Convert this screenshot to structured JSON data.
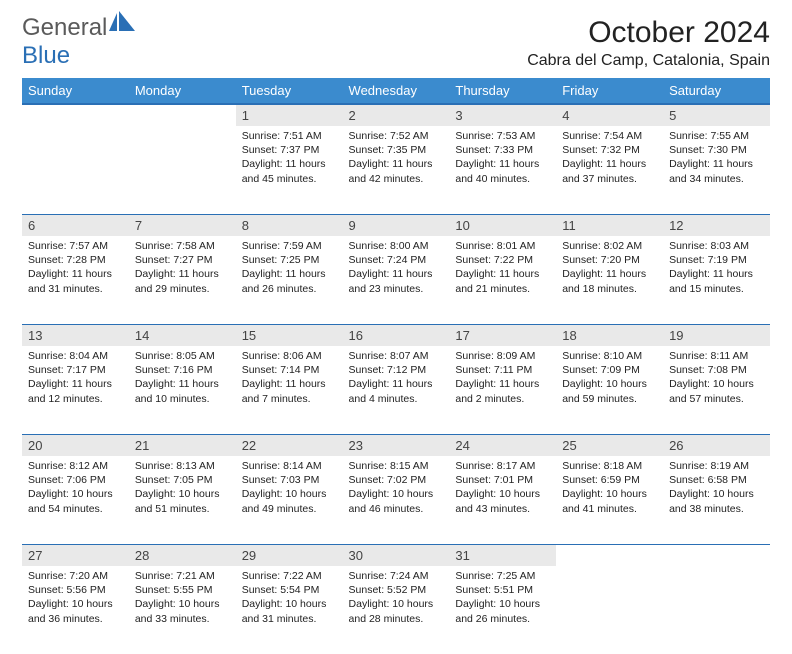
{
  "logo": {
    "text1": "General",
    "text2": "Blue"
  },
  "title": "October 2024",
  "location": "Cabra del Camp, Catalonia, Spain",
  "colors": {
    "header_bg": "#3b8bce",
    "header_border": "#2a6fb5",
    "daynum_bg": "#e9e9e9",
    "text": "#222222",
    "logo_gray": "#5a5a5a",
    "logo_blue": "#2a6fb5"
  },
  "day_headers": [
    "Sunday",
    "Monday",
    "Tuesday",
    "Wednesday",
    "Thursday",
    "Friday",
    "Saturday"
  ],
  "weeks": [
    [
      null,
      null,
      {
        "n": "1",
        "sr": "7:51 AM",
        "ss": "7:37 PM",
        "dl": "11 hours and 45 minutes."
      },
      {
        "n": "2",
        "sr": "7:52 AM",
        "ss": "7:35 PM",
        "dl": "11 hours and 42 minutes."
      },
      {
        "n": "3",
        "sr": "7:53 AM",
        "ss": "7:33 PM",
        "dl": "11 hours and 40 minutes."
      },
      {
        "n": "4",
        "sr": "7:54 AM",
        "ss": "7:32 PM",
        "dl": "11 hours and 37 minutes."
      },
      {
        "n": "5",
        "sr": "7:55 AM",
        "ss": "7:30 PM",
        "dl": "11 hours and 34 minutes."
      }
    ],
    [
      {
        "n": "6",
        "sr": "7:57 AM",
        "ss": "7:28 PM",
        "dl": "11 hours and 31 minutes."
      },
      {
        "n": "7",
        "sr": "7:58 AM",
        "ss": "7:27 PM",
        "dl": "11 hours and 29 minutes."
      },
      {
        "n": "8",
        "sr": "7:59 AM",
        "ss": "7:25 PM",
        "dl": "11 hours and 26 minutes."
      },
      {
        "n": "9",
        "sr": "8:00 AM",
        "ss": "7:24 PM",
        "dl": "11 hours and 23 minutes."
      },
      {
        "n": "10",
        "sr": "8:01 AM",
        "ss": "7:22 PM",
        "dl": "11 hours and 21 minutes."
      },
      {
        "n": "11",
        "sr": "8:02 AM",
        "ss": "7:20 PM",
        "dl": "11 hours and 18 minutes."
      },
      {
        "n": "12",
        "sr": "8:03 AM",
        "ss": "7:19 PM",
        "dl": "11 hours and 15 minutes."
      }
    ],
    [
      {
        "n": "13",
        "sr": "8:04 AM",
        "ss": "7:17 PM",
        "dl": "11 hours and 12 minutes."
      },
      {
        "n": "14",
        "sr": "8:05 AM",
        "ss": "7:16 PM",
        "dl": "11 hours and 10 minutes."
      },
      {
        "n": "15",
        "sr": "8:06 AM",
        "ss": "7:14 PM",
        "dl": "11 hours and 7 minutes."
      },
      {
        "n": "16",
        "sr": "8:07 AM",
        "ss": "7:12 PM",
        "dl": "11 hours and 4 minutes."
      },
      {
        "n": "17",
        "sr": "8:09 AM",
        "ss": "7:11 PM",
        "dl": "11 hours and 2 minutes."
      },
      {
        "n": "18",
        "sr": "8:10 AM",
        "ss": "7:09 PM",
        "dl": "10 hours and 59 minutes."
      },
      {
        "n": "19",
        "sr": "8:11 AM",
        "ss": "7:08 PM",
        "dl": "10 hours and 57 minutes."
      }
    ],
    [
      {
        "n": "20",
        "sr": "8:12 AM",
        "ss": "7:06 PM",
        "dl": "10 hours and 54 minutes."
      },
      {
        "n": "21",
        "sr": "8:13 AM",
        "ss": "7:05 PM",
        "dl": "10 hours and 51 minutes."
      },
      {
        "n": "22",
        "sr": "8:14 AM",
        "ss": "7:03 PM",
        "dl": "10 hours and 49 minutes."
      },
      {
        "n": "23",
        "sr": "8:15 AM",
        "ss": "7:02 PM",
        "dl": "10 hours and 46 minutes."
      },
      {
        "n": "24",
        "sr": "8:17 AM",
        "ss": "7:01 PM",
        "dl": "10 hours and 43 minutes."
      },
      {
        "n": "25",
        "sr": "8:18 AM",
        "ss": "6:59 PM",
        "dl": "10 hours and 41 minutes."
      },
      {
        "n": "26",
        "sr": "8:19 AM",
        "ss": "6:58 PM",
        "dl": "10 hours and 38 minutes."
      }
    ],
    [
      {
        "n": "27",
        "sr": "7:20 AM",
        "ss": "5:56 PM",
        "dl": "10 hours and 36 minutes."
      },
      {
        "n": "28",
        "sr": "7:21 AM",
        "ss": "5:55 PM",
        "dl": "10 hours and 33 minutes."
      },
      {
        "n": "29",
        "sr": "7:22 AM",
        "ss": "5:54 PM",
        "dl": "10 hours and 31 minutes."
      },
      {
        "n": "30",
        "sr": "7:24 AM",
        "ss": "5:52 PM",
        "dl": "10 hours and 28 minutes."
      },
      {
        "n": "31",
        "sr": "7:25 AM",
        "ss": "5:51 PM",
        "dl": "10 hours and 26 minutes."
      },
      null,
      null
    ]
  ],
  "labels": {
    "sunrise": "Sunrise:",
    "sunset": "Sunset:",
    "daylight": "Daylight:"
  }
}
